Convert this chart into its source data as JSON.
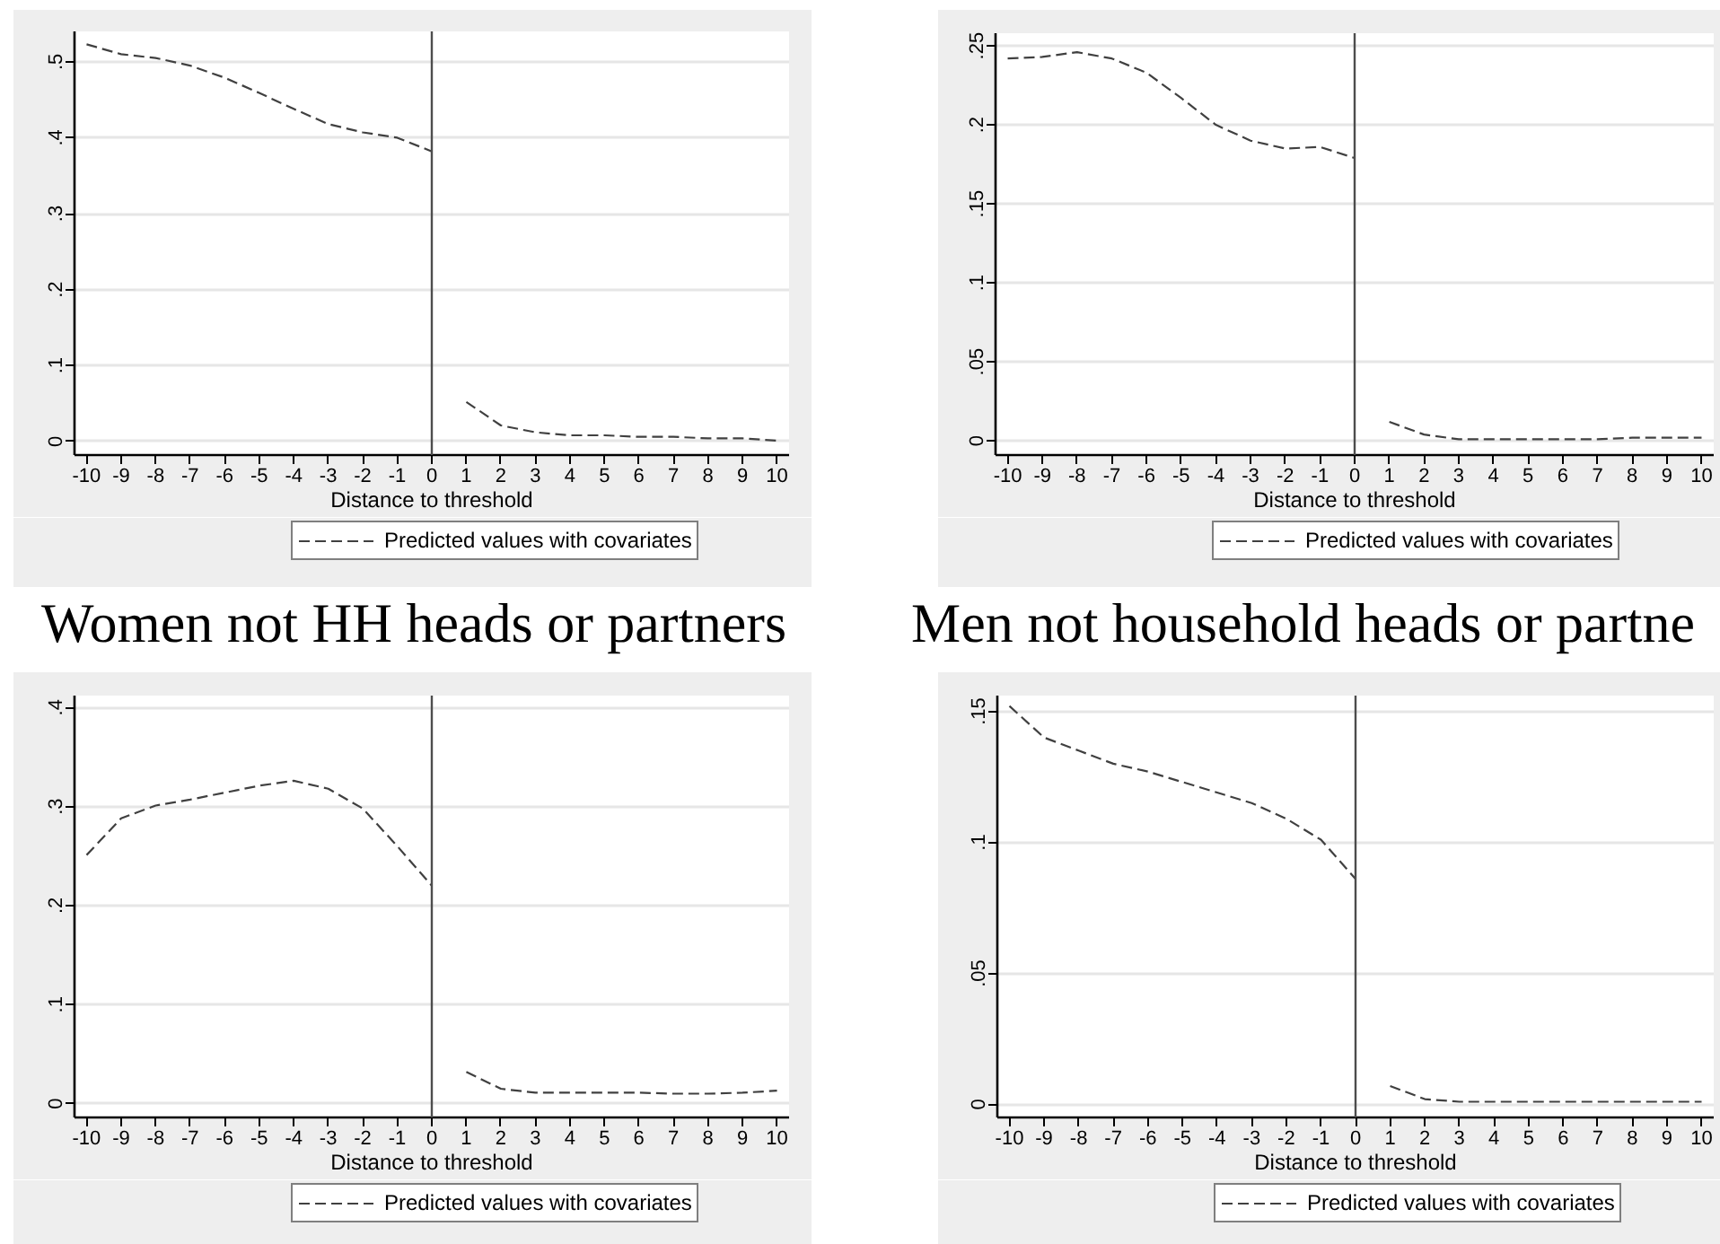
{
  "chart_data": [
    {
      "type": "line",
      "xlabel": "Distance to threshold",
      "xlim": [
        -10.35,
        10.35
      ],
      "xticks": [
        -10,
        -9,
        -8,
        -7,
        -6,
        -5,
        -4,
        -3,
        -2,
        -1,
        0,
        1,
        2,
        3,
        4,
        5,
        6,
        7,
        8,
        9,
        10
      ],
      "ylim": [
        -0.018,
        0.54
      ],
      "yticks": [
        0,
        {
          "value": 0.1,
          "label": ".1"
        },
        {
          "value": 0.2,
          "label": ".2"
        },
        {
          "value": 0.3,
          "label": ".3"
        },
        {
          "value": 0.4,
          "label": ".4"
        },
        {
          "value": 0.5,
          "label": ".5"
        }
      ],
      "grid": "y",
      "legend": "bottom",
      "line_style": "dashed",
      "ref_lines": [
        {
          "axis": "x",
          "value": 0,
          "color": "#4d4d4d"
        }
      ],
      "series": [
        {
          "name": "Predicted values with covariates",
          "color": "#404040",
          "x": [
            -10,
            -9,
            -8,
            -7,
            -6,
            -5,
            -4,
            -3,
            -2,
            -1,
            0
          ],
          "values": [
            0.523,
            0.51,
            0.505,
            0.495,
            0.479,
            0.459,
            0.438,
            0.418,
            0.407,
            0.4,
            0.382
          ]
        },
        {
          "color": "#404040",
          "x": [
            1,
            2,
            3,
            4,
            5,
            6,
            7,
            8,
            9,
            10
          ],
          "values": [
            0.052,
            0.021,
            0.012,
            0.008,
            0.008,
            0.006,
            0.006,
            0.004,
            0.004,
            0.001
          ]
        }
      ]
    },
    {
      "type": "line",
      "xlabel": "Distance to threshold",
      "xlim": [
        -10.35,
        10.35
      ],
      "xticks": [
        -10,
        -9,
        -8,
        -7,
        -6,
        -5,
        -4,
        -3,
        -2,
        -1,
        0,
        1,
        2,
        3,
        4,
        5,
        6,
        7,
        8,
        9,
        10
      ],
      "ylim": [
        -0.009,
        0.258
      ],
      "yticks": [
        0,
        {
          "value": 0.05,
          "label": ".05"
        },
        {
          "value": 0.1,
          "label": ".1"
        },
        {
          "value": 0.15,
          "label": ".15"
        },
        {
          "value": 0.2,
          "label": ".2"
        },
        {
          "value": 0.25,
          "label": ".25"
        }
      ],
      "grid": "y",
      "legend": "bottom",
      "line_style": "dashed",
      "ref_lines": [
        {
          "axis": "x",
          "value": 0,
          "color": "#4d4d4d"
        }
      ],
      "series": [
        {
          "name": "Predicted values with covariates",
          "color": "#404040",
          "x": [
            -10,
            -9,
            -8,
            -7,
            -6,
            -5,
            -4,
            -3,
            -2,
            -1,
            0
          ],
          "values": [
            0.242,
            0.243,
            0.246,
            0.242,
            0.233,
            0.217,
            0.2,
            0.19,
            0.185,
            0.186,
            0.179
          ]
        },
        {
          "color": "#404040",
          "x": [
            1,
            2,
            3,
            4,
            5,
            6,
            7,
            8,
            9,
            10
          ],
          "values": [
            0.012,
            0.004,
            0.001,
            0.001,
            0.001,
            0.001,
            0.001,
            0.002,
            0.002,
            0.002
          ]
        }
      ]
    },
    {
      "type": "line",
      "title": "Women not HH heads or partners",
      "xlabel": "Distance to threshold",
      "xlim": [
        -10.35,
        10.35
      ],
      "xticks": [
        -10,
        -9,
        -8,
        -7,
        -6,
        -5,
        -4,
        -3,
        -2,
        -1,
        0,
        1,
        2,
        3,
        4,
        5,
        6,
        7,
        8,
        9,
        10
      ],
      "ylim": [
        -0.014,
        0.412
      ],
      "yticks": [
        0,
        {
          "value": 0.1,
          "label": ".1"
        },
        {
          "value": 0.2,
          "label": ".2"
        },
        {
          "value": 0.3,
          "label": ".3"
        },
        {
          "value": 0.4,
          "label": ".4"
        }
      ],
      "grid": "y",
      "legend": "bottom",
      "line_style": "dashed",
      "ref_lines": [
        {
          "axis": "x",
          "value": 0,
          "color": "#4d4d4d"
        }
      ],
      "series": [
        {
          "name": "Predicted values with covariates",
          "color": "#404040",
          "x": [
            -10,
            -9,
            -8,
            -7,
            -6,
            -5,
            -4,
            -3,
            -2,
            -1,
            0
          ],
          "values": [
            0.251,
            0.288,
            0.301,
            0.307,
            0.314,
            0.321,
            0.326,
            0.318,
            0.298,
            0.26,
            0.22
          ]
        },
        {
          "color": "#404040",
          "x": [
            1,
            2,
            3,
            4,
            5,
            6,
            7,
            8,
            9,
            10
          ],
          "values": [
            0.032,
            0.015,
            0.011,
            0.011,
            0.011,
            0.011,
            0.01,
            0.01,
            0.011,
            0.013
          ]
        }
      ]
    },
    {
      "type": "line",
      "title": "Men not household heads or partne",
      "xlabel": "Distance to threshold",
      "xlim": [
        -10.35,
        10.35
      ],
      "xticks": [
        -10,
        -9,
        -8,
        -7,
        -6,
        -5,
        -4,
        -3,
        -2,
        -1,
        0,
        1,
        2,
        3,
        4,
        5,
        6,
        7,
        8,
        9,
        10
      ],
      "ylim": [
        -0.005,
        0.156
      ],
      "yticks": [
        0,
        {
          "value": 0.05,
          "label": ".05"
        },
        {
          "value": 0.1,
          "label": ".1"
        },
        {
          "value": 0.15,
          "label": ".15"
        }
      ],
      "grid": "y",
      "legend": "bottom",
      "line_style": "dashed",
      "ref_lines": [
        {
          "axis": "x",
          "value": 0,
          "color": "#4d4d4d"
        }
      ],
      "series": [
        {
          "name": "Predicted values with covariates",
          "color": "#404040",
          "x": [
            -10,
            -9,
            -8,
            -7,
            -6,
            -5,
            -4,
            -3,
            -2,
            -1,
            0
          ],
          "values": [
            0.152,
            0.14,
            0.135,
            0.13,
            0.127,
            0.123,
            0.119,
            0.115,
            0.109,
            0.101,
            0.086
          ]
        },
        {
          "color": "#404040",
          "x": [
            1,
            2,
            3,
            4,
            5,
            6,
            7,
            8,
            9,
            10
          ],
          "values": [
            0.007,
            0.002,
            0.001,
            0.001,
            0.001,
            0.001,
            0.001,
            0.001,
            0.001,
            0.001
          ]
        }
      ]
    }
  ]
}
